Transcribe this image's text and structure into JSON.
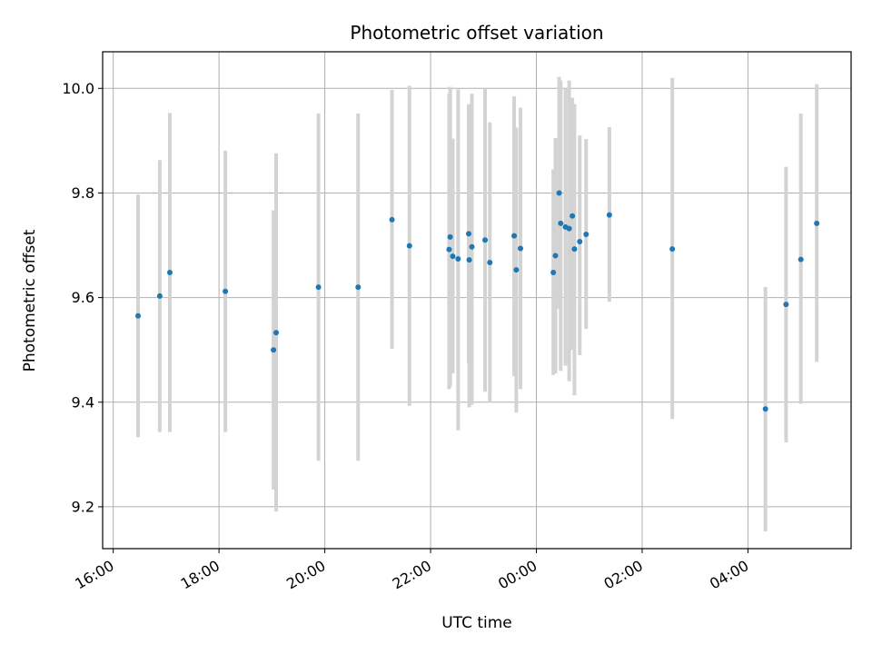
{
  "chart_data": {
    "type": "scatter",
    "title": "Photometric offset variation",
    "xlabel": "UTC time",
    "ylabel": "Photometric offset",
    "x_unit": "hours",
    "x_ticks": [
      {
        "value": 16,
        "label": "16:00"
      },
      {
        "value": 18,
        "label": "18:00"
      },
      {
        "value": 20,
        "label": "20:00"
      },
      {
        "value": 22,
        "label": "22:00"
      },
      {
        "value": 24,
        "label": "00:00"
      },
      {
        "value": 26,
        "label": "02:00"
      },
      {
        "value": 28,
        "label": "04:00"
      }
    ],
    "y_ticks": [
      9.2,
      9.4,
      9.6,
      9.8,
      10.0
    ],
    "y_tick_labels": [
      "9.2",
      "9.4",
      "9.6",
      "9.8",
      "10.0"
    ],
    "xlim": [
      15.8,
      29.95
    ],
    "ylim": [
      9.12,
      10.07
    ],
    "grid": true,
    "point_color": "#1f77b4",
    "errorbar_color": "#d3d3d3",
    "points": [
      {
        "x": 16.47,
        "y": 9.565,
        "ylow": 9.333,
        "yhigh": 9.797
      },
      {
        "x": 16.88,
        "y": 9.603,
        "ylow": 9.343,
        "yhigh": 9.863
      },
      {
        "x": 17.07,
        "y": 9.648,
        "ylow": 9.343,
        "yhigh": 9.953
      },
      {
        "x": 18.12,
        "y": 9.612,
        "ylow": 9.343,
        "yhigh": 9.881
      },
      {
        "x": 19.03,
        "y": 9.5,
        "ylow": 9.233,
        "yhigh": 9.767
      },
      {
        "x": 19.08,
        "y": 9.533,
        "ylow": 9.191,
        "yhigh": 9.876
      },
      {
        "x": 19.88,
        "y": 9.62,
        "ylow": 9.288,
        "yhigh": 9.952
      },
      {
        "x": 20.63,
        "y": 9.62,
        "ylow": 9.288,
        "yhigh": 9.952
      },
      {
        "x": 21.27,
        "y": 9.749,
        "ylow": 9.502,
        "yhigh": 9.997
      },
      {
        "x": 21.6,
        "y": 9.699,
        "ylow": 9.393,
        "yhigh": 10.005
      },
      {
        "x": 22.35,
        "y": 9.692,
        "ylow": 9.425,
        "yhigh": 9.99
      },
      {
        "x": 22.37,
        "y": 9.716,
        "ylow": 9.43,
        "yhigh": 10.003
      },
      {
        "x": 22.42,
        "y": 9.679,
        "ylow": 9.455,
        "yhigh": 9.904
      },
      {
        "x": 22.52,
        "y": 9.674,
        "ylow": 9.346,
        "yhigh": 9.998
      },
      {
        "x": 22.72,
        "y": 9.722,
        "ylow": 9.475,
        "yhigh": 9.97
      },
      {
        "x": 22.73,
        "y": 9.672,
        "ylow": 9.39,
        "yhigh": 9.955
      },
      {
        "x": 22.78,
        "y": 9.697,
        "ylow": 9.395,
        "yhigh": 9.99
      },
      {
        "x": 23.03,
        "y": 9.71,
        "ylow": 9.42,
        "yhigh": 10.0
      },
      {
        "x": 23.12,
        "y": 9.667,
        "ylow": 9.4,
        "yhigh": 9.935
      },
      {
        "x": 23.58,
        "y": 9.718,
        "ylow": 9.45,
        "yhigh": 9.985
      },
      {
        "x": 23.62,
        "y": 9.653,
        "ylow": 9.38,
        "yhigh": 9.925
      },
      {
        "x": 23.7,
        "y": 9.694,
        "ylow": 9.425,
        "yhigh": 9.963
      },
      {
        "x": 24.32,
        "y": 9.648,
        "ylow": 9.452,
        "yhigh": 9.845
      },
      {
        "x": 24.36,
        "y": 9.68,
        "ylow": 9.455,
        "yhigh": 9.905
      },
      {
        "x": 24.43,
        "y": 9.8,
        "ylow": 9.578,
        "yhigh": 10.022
      },
      {
        "x": 24.46,
        "y": 9.742,
        "ylow": 9.46,
        "yhigh": 10.015
      },
      {
        "x": 24.55,
        "y": 9.735,
        "ylow": 9.47,
        "yhigh": 10.0
      },
      {
        "x": 24.62,
        "y": 9.732,
        "ylow": 9.44,
        "yhigh": 10.015
      },
      {
        "x": 24.68,
        "y": 9.756,
        "ylow": 9.5,
        "yhigh": 9.982
      },
      {
        "x": 24.72,
        "y": 9.693,
        "ylow": 9.413,
        "yhigh": 9.97
      },
      {
        "x": 24.82,
        "y": 9.707,
        "ylow": 9.49,
        "yhigh": 9.91
      },
      {
        "x": 24.94,
        "y": 9.721,
        "ylow": 9.54,
        "yhigh": 9.903
      },
      {
        "x": 25.38,
        "y": 9.758,
        "ylow": 9.592,
        "yhigh": 9.926
      },
      {
        "x": 26.57,
        "y": 9.693,
        "ylow": 9.368,
        "yhigh": 10.02
      },
      {
        "x": 28.33,
        "y": 9.387,
        "ylow": 9.153,
        "yhigh": 9.62
      },
      {
        "x": 28.72,
        "y": 9.587,
        "ylow": 9.323,
        "yhigh": 9.85
      },
      {
        "x": 29.0,
        "y": 9.673,
        "ylow": 9.397,
        "yhigh": 9.952
      },
      {
        "x": 29.3,
        "y": 9.742,
        "ylow": 9.477,
        "yhigh": 10.008
      }
    ]
  }
}
